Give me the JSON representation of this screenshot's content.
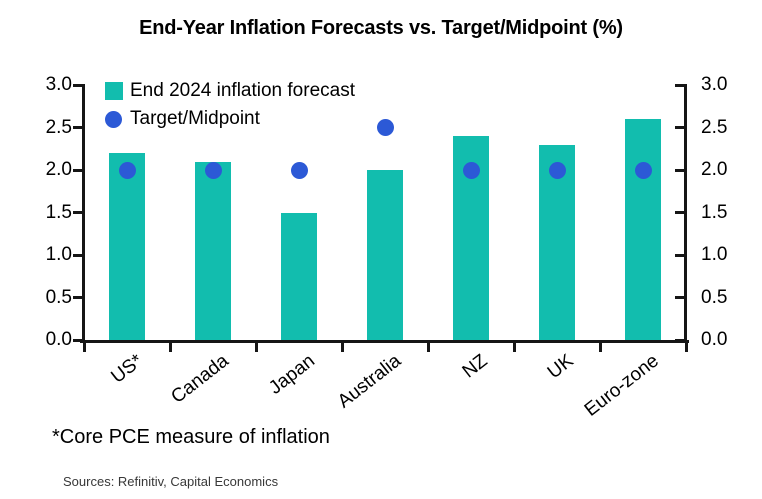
{
  "title": "End-Year Inflation Forecasts vs. Target/Midpoint (%)",
  "legend": [
    {
      "label": "End 2024 inflation forecast",
      "marker": "square",
      "color": "#12BDAE"
    },
    {
      "label": "Target/Midpoint",
      "marker": "circle",
      "color": "#2C59D6"
    }
  ],
  "footnote": "*Core PCE measure of inflation",
  "sources": "Sources: Refinitiv, Capital Economics",
  "colors": {
    "bar": "#12BDAE",
    "dot": "#2C59D6",
    "axis": "#161616",
    "text": "#000000"
  },
  "chart_data": {
    "type": "bar",
    "title": "End-Year Inflation Forecasts vs. Target/Midpoint (%)",
    "categories": [
      "US*",
      "Canada",
      "Japan",
      "Australia",
      "NZ",
      "UK",
      "Euro-zone"
    ],
    "series": [
      {
        "name": "End 2024 inflation forecast",
        "type": "bar",
        "values": [
          2.2,
          2.1,
          1.5,
          2.0,
          2.4,
          2.3,
          2.6
        ]
      },
      {
        "name": "Target/Midpoint",
        "type": "scatter",
        "values": [
          2.0,
          2.0,
          2.0,
          2.5,
          2.0,
          2.0,
          2.0
        ]
      }
    ],
    "xlabel": "",
    "ylabel": "",
    "ylim": [
      0.0,
      3.0
    ],
    "ytick_labels": [
      "3.0",
      "2.5",
      "2.0",
      "1.5",
      "1.0",
      "0.5",
      "0.0"
    ],
    "ytick_values": [
      3.0,
      2.5,
      2.0,
      1.5,
      1.0,
      0.5,
      0.0
    ],
    "dual_axis": true,
    "grid": false,
    "legend_position": "top-left-inside",
    "xtick_rotation_deg": -38
  }
}
